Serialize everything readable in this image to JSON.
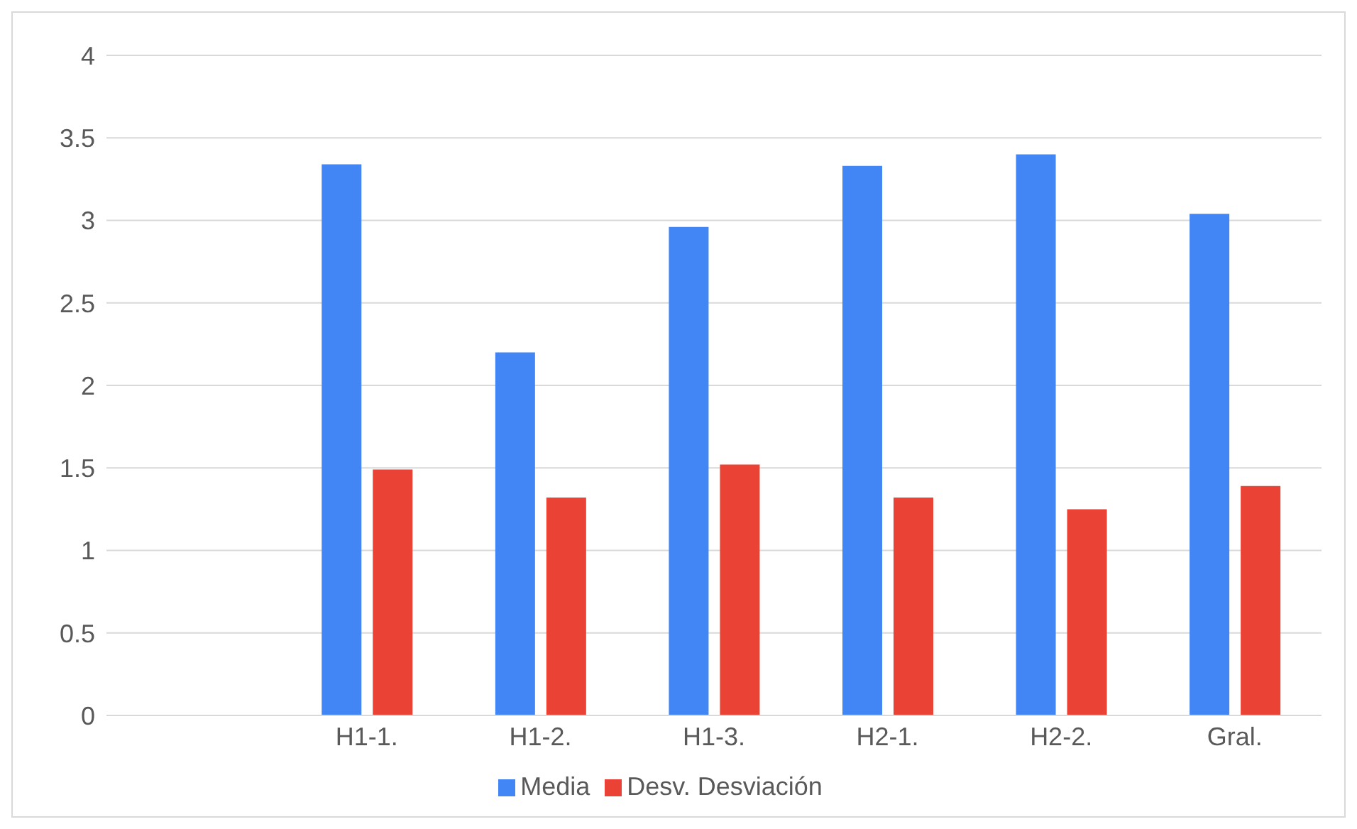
{
  "chart_data": {
    "type": "bar",
    "categories": [
      null,
      "H1-1.",
      "H1-2.",
      "H1-3.",
      "H2-1.",
      "H2-2.",
      "Gral."
    ],
    "series": [
      {
        "name": "Media",
        "color": "#4285f4",
        "values": [
          null,
          3.34,
          2.2,
          2.96,
          3.33,
          3.4,
          3.04
        ]
      },
      {
        "name": "Desv. Desviación",
        "color": "#ea4335",
        "values": [
          null,
          1.49,
          1.32,
          1.52,
          1.32,
          1.25,
          1.39
        ]
      }
    ],
    "ylim": [
      0,
      4
    ],
    "yticks": [
      0,
      0.5,
      1,
      1.5,
      2,
      2.5,
      3,
      3.5,
      4
    ],
    "grid": "y",
    "legend": "bottom"
  }
}
